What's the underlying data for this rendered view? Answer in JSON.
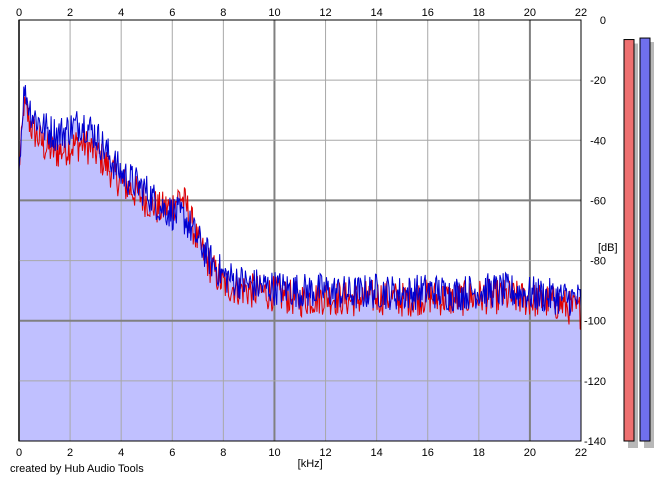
{
  "credit": "created by Hub Audio Tools",
  "chart_data": {
    "type": "area",
    "xlabel": "[kHz]",
    "ylabel": "[dB]",
    "xlim": [
      0,
      22
    ],
    "ylim": [
      -140,
      0
    ],
    "x_ticks": [
      0,
      2,
      4,
      6,
      8,
      10,
      12,
      14,
      16,
      18,
      20,
      22
    ],
    "y_ticks": [
      0,
      -20,
      -40,
      -60,
      -80,
      -100,
      -120,
      -140
    ],
    "grid": true,
    "fill_color": "#c0c0ff",
    "series": [
      {
        "color": "#e00000",
        "points": [
          [
            0,
            -50
          ],
          [
            0.2,
            -28
          ],
          [
            0.5,
            -36
          ],
          [
            1,
            -42
          ],
          [
            1.5,
            -44
          ],
          [
            2,
            -42
          ],
          [
            2.5,
            -41
          ],
          [
            3,
            -44
          ],
          [
            3.5,
            -49
          ],
          [
            4,
            -54
          ],
          [
            4.5,
            -57
          ],
          [
            5,
            -60
          ],
          [
            5.5,
            -63
          ],
          [
            6,
            -62
          ],
          [
            6.3,
            -58
          ],
          [
            6.6,
            -63
          ],
          [
            7,
            -74
          ],
          [
            7.5,
            -82
          ],
          [
            8,
            -88
          ],
          [
            9,
            -90
          ],
          [
            10,
            -91
          ],
          [
            11,
            -93
          ],
          [
            12,
            -92
          ],
          [
            13,
            -93
          ],
          [
            14,
            -92
          ],
          [
            15,
            -93
          ],
          [
            16,
            -92
          ],
          [
            17,
            -93
          ],
          [
            18,
            -92
          ],
          [
            19,
            -92
          ],
          [
            20,
            -93
          ],
          [
            21,
            -94
          ],
          [
            22,
            -97
          ]
        ]
      },
      {
        "color": "#0000d0",
        "points": [
          [
            0,
            -50
          ],
          [
            0.2,
            -23
          ],
          [
            0.5,
            -31
          ],
          [
            1,
            -36
          ],
          [
            1.5,
            -38
          ],
          [
            2,
            -36
          ],
          [
            2.5,
            -34
          ],
          [
            3,
            -38
          ],
          [
            3.5,
            -45
          ],
          [
            4,
            -51
          ],
          [
            4.5,
            -54
          ],
          [
            5,
            -57
          ],
          [
            5.5,
            -62
          ],
          [
            6,
            -64
          ],
          [
            6.5,
            -66
          ],
          [
            7,
            -73
          ],
          [
            7.5,
            -80
          ],
          [
            8,
            -85
          ],
          [
            9,
            -88
          ],
          [
            10,
            -89
          ],
          [
            11,
            -90
          ],
          [
            12,
            -90
          ],
          [
            13,
            -91
          ],
          [
            14,
            -90
          ],
          [
            15,
            -91
          ],
          [
            16,
            -90
          ],
          [
            17,
            -91
          ],
          [
            18,
            -90
          ],
          [
            19,
            -90
          ],
          [
            20,
            -91
          ],
          [
            21,
            -92
          ],
          [
            22,
            -93
          ]
        ]
      }
    ],
    "meters": [
      {
        "color": "#ee7070",
        "value": -6.5
      },
      {
        "color": "#7070ee",
        "value": -6.0
      }
    ]
  }
}
